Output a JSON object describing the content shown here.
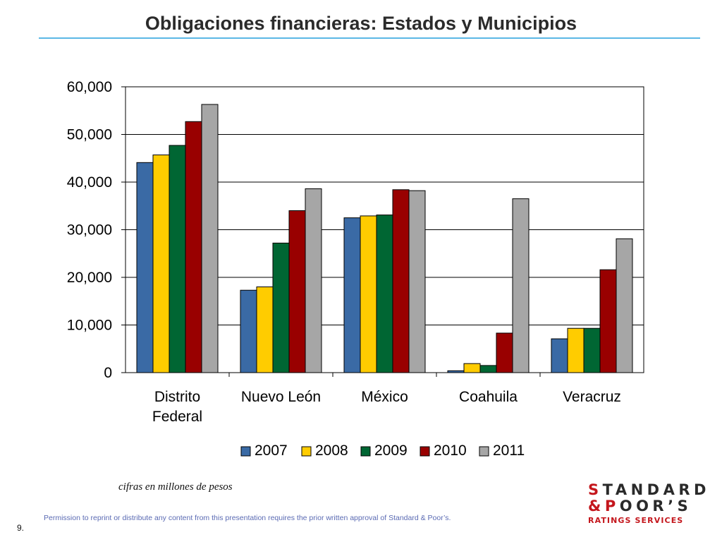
{
  "page": {
    "title": "Obligaciones financieras: Estados y Municipios",
    "note": "cifras en millones de pesos",
    "footer": "Permission to reprint or distribute any content from this presentation requires the prior written approval of Standard & Poor’s.",
    "page_number": "9."
  },
  "logo": {
    "line1_first": "S",
    "line1_rest": "TANDARD",
    "line2_first": "&P",
    "line2_rest": "OOR’S",
    "line3": "RATINGS SERVICES",
    "accent_color": "#c4161c"
  },
  "chart_data": {
    "type": "bar",
    "title": "",
    "xlabel": "",
    "ylabel": "",
    "categories": [
      [
        "Distrito",
        "Federal"
      ],
      [
        "Nuevo León"
      ],
      [
        "México"
      ],
      [
        "Coahuila"
      ],
      [
        "Veracruz"
      ]
    ],
    "series": [
      {
        "name": "2007",
        "color": "#3a6aa5",
        "values": [
          44100,
          17300,
          32500,
          400,
          7100
        ]
      },
      {
        "name": "2008",
        "color": "#ffcc00",
        "values": [
          45700,
          18000,
          32900,
          1900,
          9300
        ]
      },
      {
        "name": "2009",
        "color": "#006633",
        "values": [
          47700,
          27200,
          33100,
          1500,
          9300
        ]
      },
      {
        "name": "2010",
        "color": "#990000",
        "values": [
          52700,
          34000,
          38400,
          8300,
          21600
        ]
      },
      {
        "name": "2011",
        "color": "#a6a6a6",
        "values": [
          56300,
          38600,
          38200,
          36500,
          28100
        ]
      }
    ],
    "ylim": [
      0,
      60000
    ],
    "yticks": [
      0,
      10000,
      20000,
      30000,
      40000,
      50000,
      60000
    ],
    "ytick_labels": [
      "0",
      "10,000",
      "20,000",
      "30,000",
      "40,000",
      "50,000",
      "60,000"
    ],
    "grid": true,
    "legend": "bottom"
  }
}
